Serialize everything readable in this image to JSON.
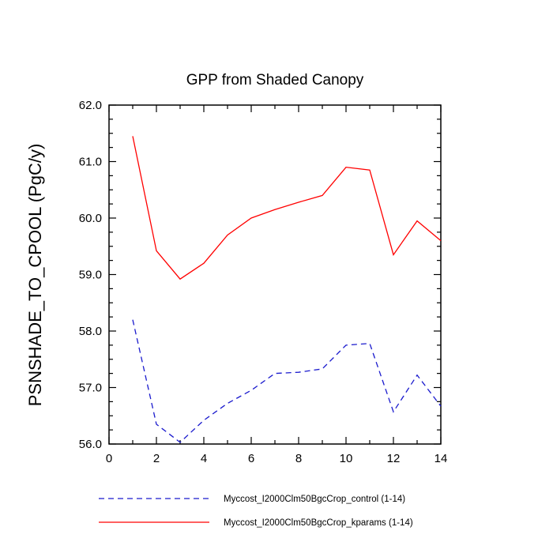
{
  "chart_data": {
    "type": "line",
    "title": "GPP from Shaded Canopy",
    "xlabel": "",
    "ylabel": "PSNSHADE_TO_CPOOL  (PgC/y)",
    "xlim": [
      0,
      14
    ],
    "ylim": [
      56.0,
      62.0
    ],
    "x_major_ticks": [
      0,
      2,
      4,
      6,
      8,
      10,
      12,
      14
    ],
    "x_minor_step": 1,
    "y_major_ticks": [
      56.0,
      57.0,
      58.0,
      59.0,
      60.0,
      61.0,
      62.0
    ],
    "y_minor_step": 0.25,
    "grid": false,
    "legend_position": "bottom",
    "x": [
      1,
      2,
      3,
      4,
      5,
      6,
      7,
      8,
      9,
      10,
      11,
      12,
      13,
      14
    ],
    "series": [
      {
        "name": "control",
        "legend_label": "Myccost_I2000Clm50BgcCrop_control (1-14)",
        "color": "#1a1acd",
        "style": "dashed",
        "values": [
          58.2,
          56.35,
          56.03,
          56.42,
          56.72,
          56.95,
          57.25,
          57.27,
          57.33,
          57.75,
          57.78,
          56.57,
          57.22,
          56.67
        ]
      },
      {
        "name": "kparams",
        "legend_label": "Myccost_I2000Clm50BgcCrop_kparams (1-14)",
        "color": "#ff0000",
        "style": "solid",
        "values": [
          61.45,
          59.42,
          58.92,
          59.2,
          59.7,
          60.0,
          60.15,
          60.28,
          60.4,
          60.9,
          60.85,
          59.35,
          59.95,
          59.6
        ]
      }
    ]
  }
}
